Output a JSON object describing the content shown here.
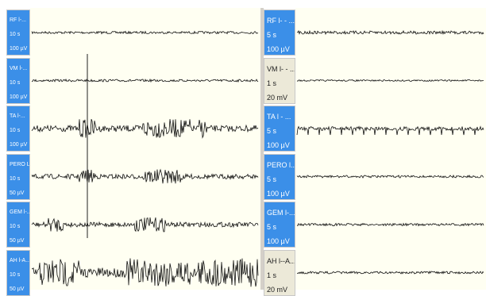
{
  "left_channels": [
    {
      "name": "RF l-...",
      "duration": "10 s",
      "scale": "100 µV",
      "style": "blue"
    },
    {
      "name": "VM l-...",
      "duration": "10 s",
      "scale": "100 µV",
      "style": "blue"
    },
    {
      "name": "TA l-...",
      "duration": "10 s",
      "scale": "100 µV",
      "style": "blue"
    },
    {
      "name": "PERO L...",
      "duration": "10 s",
      "scale": "50 µV",
      "style": "blue"
    },
    {
      "name": "GEM l-...",
      "duration": "10 s",
      "scale": "50 µV",
      "style": "blue"
    },
    {
      "name": "AH l-A...",
      "duration": "10 s",
      "scale": "50 µV",
      "style": "blue"
    }
  ],
  "right_channels": [
    {
      "name": "RF l- - ...",
      "duration": "5 s",
      "scale": "100 µV",
      "style": "blue"
    },
    {
      "name": "VM l- - ...",
      "duration": "1 s",
      "scale": "20 mV",
      "style": "gray"
    },
    {
      "name": "TA l - ...",
      "duration": "5 s",
      "scale": "100 µV",
      "style": "blue"
    },
    {
      "name": "PERO l...",
      "duration": "5 s",
      "scale": "100 µV",
      "style": "blue"
    },
    {
      "name": "GEM l-...",
      "duration": "5 s",
      "scale": "100 µV",
      "style": "blue"
    },
    {
      "name": "AH l--A...",
      "duration": "1 s",
      "scale": "20 mV",
      "style": "gray"
    }
  ]
}
